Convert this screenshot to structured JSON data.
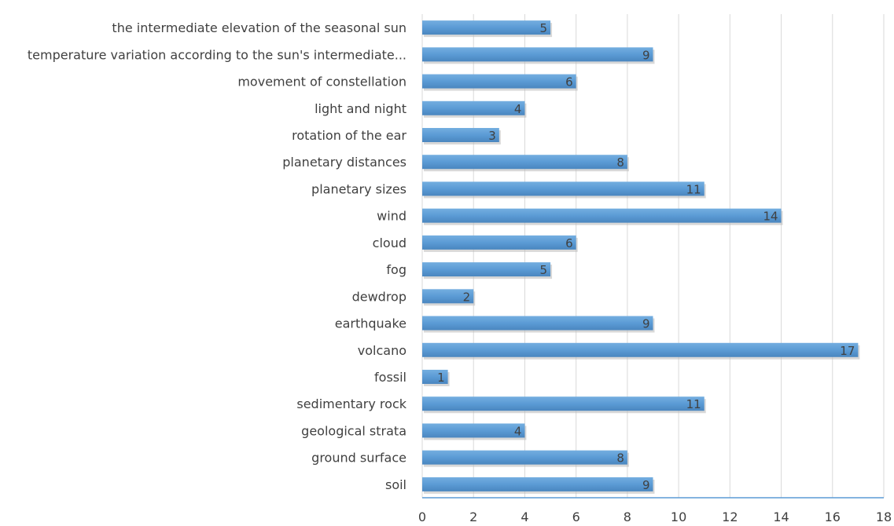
{
  "chart_data": {
    "type": "bar",
    "orientation": "horizontal",
    "title": "",
    "xlabel": "",
    "ylabel": "",
    "categories": [
      "the intermediate elevation of the seasonal sun",
      "temperature variation according to the sun's intermediate...",
      "movement of constellation",
      "light and night",
      "rotation of the ear",
      "planetary distances",
      "planetary sizes",
      "wind",
      "cloud",
      "fog",
      "dewdrop",
      "earthquake",
      "volcano",
      "fossil",
      "sedimentary rock",
      "geological strata",
      "ground surface",
      "soil"
    ],
    "values": [
      5,
      9,
      6,
      4,
      3,
      8,
      11,
      14,
      6,
      5,
      2,
      9,
      17,
      1,
      11,
      4,
      8,
      9
    ],
    "xlim": [
      0,
      18
    ],
    "xticks": [
      0,
      2,
      4,
      6,
      8,
      10,
      12,
      14,
      16,
      18
    ],
    "grid": "vertical",
    "legend": "none",
    "data_labels": "inside-end",
    "colors": {
      "bar": "#5b9bd5",
      "bar_shadow": "#b8b8b8",
      "grid": "#d9d9d9",
      "axis": "#5b9bd5",
      "text": "#404040"
    }
  }
}
